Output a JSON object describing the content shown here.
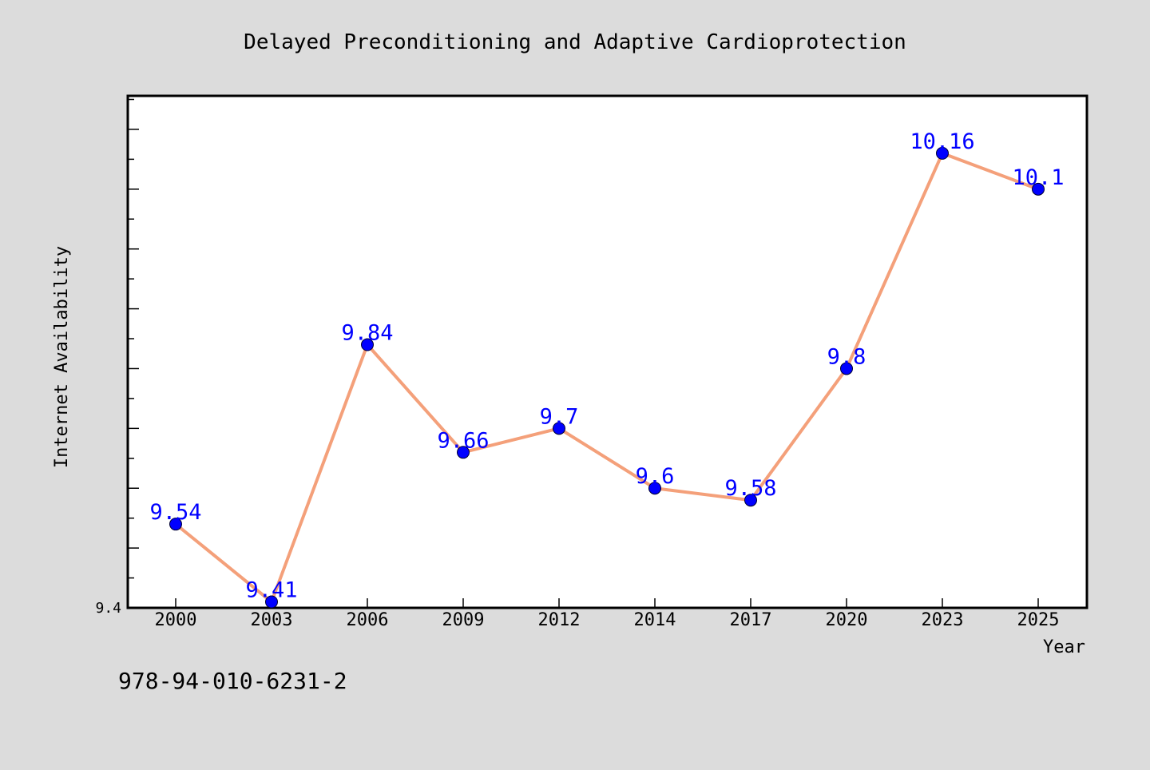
{
  "chart_data": {
    "type": "line",
    "title": "Delayed Preconditioning and Adaptive Cardioprotection",
    "xlabel": "Year",
    "ylabel": "Internet Availability",
    "categories": [
      "2000",
      "2003",
      "2006",
      "2009",
      "2012",
      "2014",
      "2017",
      "2020",
      "2023",
      "2025"
    ],
    "series": [
      {
        "values": [
          9.54,
          9.41,
          9.84,
          9.66,
          9.7,
          9.6,
          9.58,
          9.8,
          10.16,
          10.1
        ],
        "labels": [
          "9.54",
          "9.41",
          "9.84",
          "9.66",
          "9.7",
          "9.6",
          "9.58",
          "9.8",
          "10.16",
          "10.1"
        ]
      }
    ],
    "ylim": [
      9.4,
      10.256
    ],
    "y_tick_labels": [
      "9.4"
    ],
    "grid": false,
    "colors": {
      "line": "#f4a07a",
      "marker": "#0000ff",
      "label": "#0000ff",
      "axis": "#000000",
      "background": "#dcdcdc",
      "plot_background": "#ffffff"
    }
  },
  "footer": {
    "isbn": "978-94-010-6231-2"
  }
}
